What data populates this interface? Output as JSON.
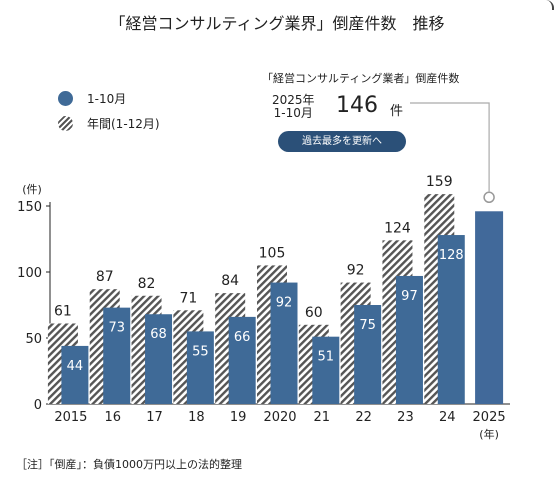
{
  "header": {
    "title": "「経営コンサルティング業界」倒産件数　推移"
  },
  "legend": {
    "series1": "1-10月",
    "series2": "年間(1-12月)"
  },
  "annotation": {
    "title": "「経営コンサルティング業者」倒産件数",
    "year_line1": "2025年",
    "year_line2": "1-10月",
    "value": "146",
    "unit": "件",
    "badge": "過去最多を更新へ"
  },
  "footnote": "［注］「倒産」：負債1000万円以上の法的整理",
  "chart_data": {
    "type": "bar",
    "categories": [
      "2015",
      "16",
      "17",
      "18",
      "19",
      "2020",
      "21",
      "22",
      "23",
      "24",
      "2025"
    ],
    "series": [
      {
        "name": "1-10月",
        "values": [
          44,
          73,
          68,
          55,
          66,
          92,
          51,
          75,
          97,
          128,
          146
        ]
      },
      {
        "name": "年間(1-12月)",
        "values": [
          61,
          87,
          82,
          71,
          84,
          105,
          60,
          92,
          124,
          159,
          null
        ]
      }
    ],
    "data_labels_series1": [
      "44",
      "73",
      "68",
      "55",
      "66",
      "92",
      "51",
      "75",
      "97",
      "128",
      ""
    ],
    "data_labels_series2": [
      "61",
      "87",
      "82",
      "71",
      "84",
      "105",
      "60",
      "92",
      "124",
      "159",
      ""
    ],
    "ylabel": "(件)",
    "xlabel": "(年)",
    "ylim": [
      0,
      150
    ],
    "yticks": [
      "0",
      "50",
      "100",
      "150"
    ],
    "colors": {
      "series1": "#3f6a97",
      "series2_hatch": "#555555",
      "highlight": "#2b5078"
    },
    "legend_position": "top-left",
    "grid": false
  }
}
